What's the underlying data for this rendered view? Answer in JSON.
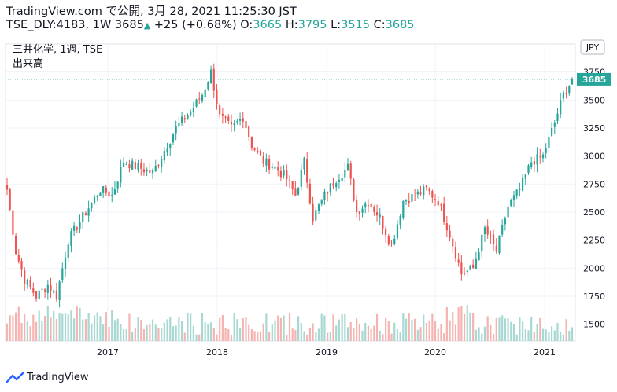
{
  "header": {
    "publisher": "TradingView.com",
    "published_label": "で公開,",
    "published_date": "3月 28, 2021 11:25:30 JST",
    "symbol": "TSE_DLY:4183, 1W",
    "last": "3685",
    "change": "+25 (+0.68%)",
    "o_label": "O:",
    "o_value": "3665",
    "h_label": "H:",
    "h_value": "3795",
    "l_label": "L:",
    "l_value": "3515",
    "c_label": "C:",
    "c_value": "3685"
  },
  "legend": {
    "title": "三井化学, 1週, TSE",
    "volume_label": "出来高"
  },
  "currency": "JPY",
  "price_badge": "3685",
  "footer": {
    "brand": "TradingView"
  },
  "colors": {
    "up": "#26a69a",
    "down": "#ef5350",
    "vol_up": "#a7d8d2",
    "vol_down": "#f5b3b1",
    "grid": "#f0f3fa"
  },
  "chart_data": {
    "type": "candlestick",
    "x_ticks": [
      "2017",
      "2018",
      "2019",
      "2020",
      "2021"
    ],
    "y_ticks": [
      1500,
      1750,
      2000,
      2250,
      2500,
      2750,
      3000,
      3250,
      3500,
      3750
    ],
    "ylim": [
      1350,
      4000
    ],
    "last_price": 3685,
    "anchors": [
      {
        "t": 0,
        "p": 2700
      },
      {
        "t": 3,
        "p": 2150
      },
      {
        "t": 6,
        "p": 1900
      },
      {
        "t": 10,
        "p": 1750
      },
      {
        "t": 14,
        "p": 1850
      },
      {
        "t": 17,
        "p": 1750
      },
      {
        "t": 21,
        "p": 2250
      },
      {
        "t": 27,
        "p": 2500
      },
      {
        "t": 32,
        "p": 2700
      },
      {
        "t": 36,
        "p": 2650
      },
      {
        "t": 40,
        "p": 2950
      },
      {
        "t": 45,
        "p": 2900
      },
      {
        "t": 50,
        "p": 2850
      },
      {
        "t": 54,
        "p": 3050
      },
      {
        "t": 58,
        "p": 3250
      },
      {
        "t": 63,
        "p": 3400
      },
      {
        "t": 67,
        "p": 3550
      },
      {
        "t": 70,
        "p": 3750
      },
      {
        "t": 73,
        "p": 3350
      },
      {
        "t": 77,
        "p": 3250
      },
      {
        "t": 81,
        "p": 3350
      },
      {
        "t": 84,
        "p": 3100
      },
      {
        "t": 88,
        "p": 2950
      },
      {
        "t": 92,
        "p": 2900
      },
      {
        "t": 96,
        "p": 2800
      },
      {
        "t": 99,
        "p": 2650
      },
      {
        "t": 102,
        "p": 2950
      },
      {
        "t": 105,
        "p": 2450
      },
      {
        "t": 109,
        "p": 2650
      },
      {
        "t": 113,
        "p": 2800
      },
      {
        "t": 117,
        "p": 2900
      },
      {
        "t": 120,
        "p": 2500
      },
      {
        "t": 124,
        "p": 2600
      },
      {
        "t": 128,
        "p": 2450
      },
      {
        "t": 132,
        "p": 2200
      },
      {
        "t": 136,
        "p": 2600
      },
      {
        "t": 140,
        "p": 2650
      },
      {
        "t": 144,
        "p": 2700
      },
      {
        "t": 148,
        "p": 2600
      },
      {
        "t": 152,
        "p": 2300
      },
      {
        "t": 156,
        "p": 1950
      },
      {
        "t": 160,
        "p": 2000
      },
      {
        "t": 164,
        "p": 2350
      },
      {
        "t": 168,
        "p": 2150
      },
      {
        "t": 172,
        "p": 2550
      },
      {
        "t": 176,
        "p": 2700
      },
      {
        "t": 180,
        "p": 2950
      },
      {
        "t": 184,
        "p": 3000
      },
      {
        "t": 188,
        "p": 3300
      },
      {
        "t": 191,
        "p": 3550
      },
      {
        "t": 194,
        "p": 3685
      }
    ]
  }
}
